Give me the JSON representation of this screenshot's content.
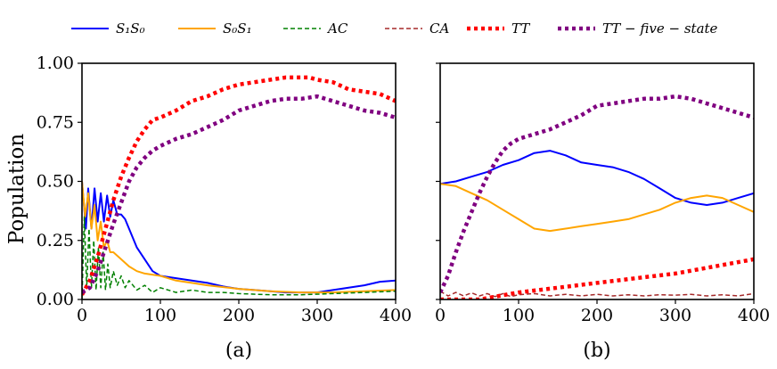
{
  "chart_data": {
    "type": "line",
    "ylabel": "Population",
    "legend": [
      {
        "key": "S1S0",
        "label": "S₁S₀",
        "color": "#0000ff",
        "dash": "solid"
      },
      {
        "key": "S0S1",
        "label": "S₀S₁",
        "color": "#ffa500",
        "dash": "solid"
      },
      {
        "key": "AC",
        "label": "AC",
        "color": "#008000",
        "dash": "dashed"
      },
      {
        "key": "CA",
        "label": "CA",
        "color": "#a52a2a",
        "dash": "dashed"
      },
      {
        "key": "TT",
        "label": "TT",
        "color": "#ff0000",
        "dash": "dotted"
      },
      {
        "key": "TT5",
        "label": "TT − five − state",
        "color": "#800080",
        "dash": "dotted"
      }
    ],
    "xlim": [
      0,
      400
    ],
    "ylim": [
      0,
      1.0
    ],
    "xticks": [
      0,
      100,
      200,
      300,
      400
    ],
    "yticks": [
      0.0,
      0.25,
      0.5,
      0.75,
      1.0
    ],
    "yticklabels": [
      "0.00",
      "0.25",
      "0.50",
      "0.75",
      "1.00"
    ],
    "xticklabels": [
      "0",
      "100",
      "200",
      "300",
      "400"
    ],
    "panels": [
      {
        "label": "(a)",
        "series": [
          {
            "key": "S1S0",
            "x": [
              0,
              5,
              8,
              12,
              16,
              20,
              24,
              28,
              32,
              36,
              40,
              45,
              50,
              55,
              60,
              65,
              70,
              80,
              90,
              100,
              120,
              140,
              160,
              180,
              200,
              220,
              240,
              260,
              280,
              300,
              320,
              340,
              360,
              380,
              400
            ],
            "y": [
              0.5,
              0.3,
              0.47,
              0.3,
              0.47,
              0.33,
              0.45,
              0.33,
              0.44,
              0.35,
              0.42,
              0.36,
              0.36,
              0.34,
              0.3,
              0.26,
              0.22,
              0.17,
              0.12,
              0.1,
              0.09,
              0.08,
              0.07,
              0.055,
              0.045,
              0.04,
              0.035,
              0.03,
              0.03,
              0.03,
              0.04,
              0.05,
              0.06,
              0.075,
              0.08
            ]
          },
          {
            "key": "S0S1",
            "x": [
              0,
              4,
              8,
              12,
              16,
              20,
              24,
              28,
              32,
              36,
              40,
              50,
              60,
              70,
              80,
              100,
              120,
              140,
              160,
              200,
              240,
              280,
              320,
              360,
              400
            ],
            "y": [
              0.5,
              0.35,
              0.45,
              0.3,
              0.4,
              0.25,
              0.33,
              0.22,
              0.25,
              0.2,
              0.2,
              0.17,
              0.14,
              0.12,
              0.11,
              0.1,
              0.08,
              0.07,
              0.06,
              0.045,
              0.035,
              0.03,
              0.03,
              0.035,
              0.04
            ]
          },
          {
            "key": "AC",
            "x": [
              0,
              3,
              6,
              9,
              12,
              15,
              18,
              21,
              24,
              27,
              30,
              33,
              36,
              40,
              45,
              50,
              55,
              60,
              70,
              80,
              90,
              100,
              120,
              140,
              160,
              180,
              200,
              240,
              280,
              320,
              360,
              400
            ],
            "y": [
              0.0,
              0.35,
              0.05,
              0.3,
              0.05,
              0.25,
              0.04,
              0.22,
              0.05,
              0.2,
              0.04,
              0.15,
              0.05,
              0.12,
              0.06,
              0.1,
              0.05,
              0.08,
              0.04,
              0.06,
              0.03,
              0.05,
              0.03,
              0.04,
              0.03,
              0.03,
              0.025,
              0.02,
              0.02,
              0.025,
              0.03,
              0.035
            ]
          },
          {
            "key": "TT",
            "x": [
              0,
              10,
              20,
              30,
              40,
              50,
              60,
              70,
              80,
              90,
              100,
              120,
              140,
              160,
              180,
              200,
              220,
              240,
              260,
              280,
              290,
              300,
              320,
              340,
              360,
              380,
              400
            ],
            "y": [
              0.02,
              0.08,
              0.18,
              0.3,
              0.42,
              0.52,
              0.6,
              0.67,
              0.72,
              0.76,
              0.77,
              0.8,
              0.84,
              0.86,
              0.89,
              0.91,
              0.92,
              0.93,
              0.94,
              0.94,
              0.94,
              0.93,
              0.92,
              0.89,
              0.88,
              0.87,
              0.84
            ]
          },
          {
            "key": "TT5",
            "x": [
              0,
              10,
              20,
              30,
              40,
              50,
              60,
              70,
              80,
              90,
              100,
              120,
              140,
              160,
              180,
              200,
              220,
              240,
              260,
              280,
              300,
              320,
              340,
              360,
              380,
              400
            ],
            "y": [
              0.03,
              0.05,
              0.12,
              0.22,
              0.32,
              0.41,
              0.5,
              0.56,
              0.6,
              0.63,
              0.65,
              0.68,
              0.7,
              0.73,
              0.76,
              0.8,
              0.82,
              0.84,
              0.85,
              0.85,
              0.86,
              0.84,
              0.82,
              0.8,
              0.79,
              0.77
            ]
          }
        ]
      },
      {
        "label": "(b)",
        "series": [
          {
            "key": "S1S0",
            "x": [
              0,
              20,
              40,
              60,
              80,
              100,
              120,
              140,
              160,
              180,
              200,
              220,
              240,
              260,
              280,
              300,
              320,
              340,
              360,
              380,
              400
            ],
            "y": [
              0.49,
              0.5,
              0.52,
              0.54,
              0.57,
              0.59,
              0.62,
              0.63,
              0.61,
              0.58,
              0.57,
              0.56,
              0.54,
              0.51,
              0.47,
              0.43,
              0.41,
              0.4,
              0.41,
              0.43,
              0.45
            ]
          },
          {
            "key": "S0S1",
            "x": [
              0,
              20,
              40,
              60,
              80,
              100,
              120,
              140,
              160,
              180,
              200,
              220,
              240,
              260,
              280,
              300,
              320,
              340,
              360,
              380,
              400
            ],
            "y": [
              0.49,
              0.48,
              0.45,
              0.42,
              0.38,
              0.34,
              0.3,
              0.29,
              0.3,
              0.31,
              0.32,
              0.33,
              0.34,
              0.36,
              0.38,
              0.41,
              0.43,
              0.44,
              0.43,
              0.4,
              0.37
            ]
          },
          {
            "key": "CA",
            "x": [
              0,
              10,
              20,
              30,
              40,
              50,
              60,
              70,
              80,
              90,
              100,
              120,
              140,
              160,
              180,
              200,
              220,
              240,
              260,
              280,
              300,
              320,
              340,
              360,
              380,
              400
            ],
            "y": [
              0.035,
              0.015,
              0.03,
              0.015,
              0.028,
              0.015,
              0.025,
              0.012,
              0.025,
              0.012,
              0.02,
              0.025,
              0.015,
              0.022,
              0.015,
              0.022,
              0.015,
              0.02,
              0.015,
              0.02,
              0.018,
              0.022,
              0.015,
              0.02,
              0.015,
              0.025
            ]
          },
          {
            "key": "TT",
            "x": [
              0,
              50,
              100,
              150,
              200,
              250,
              300,
              350,
              400
            ],
            "y": [
              0.0,
              0.0,
              0.03,
              0.05,
              0.07,
              0.09,
              0.11,
              0.14,
              0.17
            ]
          },
          {
            "key": "TT5",
            "x": [
              0,
              10,
              20,
              30,
              40,
              50,
              60,
              70,
              80,
              90,
              100,
              120,
              140,
              160,
              180,
              200,
              220,
              240,
              260,
              280,
              300,
              320,
              340,
              360,
              380,
              400
            ],
            "y": [
              0.03,
              0.1,
              0.2,
              0.29,
              0.37,
              0.45,
              0.52,
              0.58,
              0.63,
              0.66,
              0.68,
              0.7,
              0.72,
              0.75,
              0.78,
              0.82,
              0.83,
              0.84,
              0.85,
              0.85,
              0.86,
              0.85,
              0.83,
              0.81,
              0.79,
              0.77
            ]
          }
        ]
      }
    ]
  }
}
